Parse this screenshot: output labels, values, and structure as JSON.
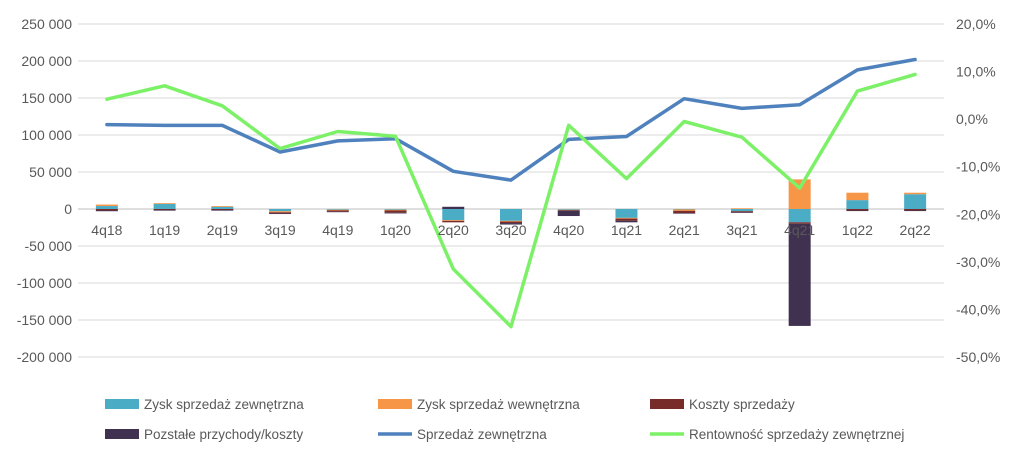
{
  "chart_data": {
    "type": "bar",
    "categories": [
      "4q18",
      "1q19",
      "2q19",
      "3q19",
      "4q19",
      "1q20",
      "2q20",
      "3q20",
      "4q20",
      "1q21",
      "2q21",
      "3q21",
      "4q21",
      "1q22",
      "2q22"
    ],
    "y_left": {
      "ylim": [
        -200000,
        250000
      ],
      "ticks": [
        250000,
        200000,
        150000,
        100000,
        50000,
        0,
        -50000,
        -100000,
        -150000,
        -200000
      ],
      "tick_labels": [
        "250 000",
        "200 000",
        "150 000",
        "100 000",
        "50 000",
        "0",
        "-50 000",
        "-100 000",
        "-150 000",
        "-200 000"
      ]
    },
    "y_right": {
      "ylim": [
        -0.5,
        0.2
      ],
      "ticks": [
        0.2,
        0.1,
        0.0,
        -0.1,
        -0.2,
        -0.3,
        -0.4,
        -0.5
      ],
      "tick_labels": [
        "20,0%",
        "10,0%",
        "0,0%",
        "-10,0%",
        "-20,0%",
        "-30,0%",
        "-40,0%",
        "-50,0%"
      ]
    },
    "grid": true,
    "legend_position": "bottom",
    "bar_series": [
      {
        "name": "Zysk sprzedaż zewnętrzna",
        "color": "#4BACC6",
        "values": [
          4000,
          7000,
          3000,
          -3000,
          -1000,
          -1000,
          -15000,
          -16000,
          -1000,
          -12000,
          -500,
          -3000,
          -18000,
          12000,
          20000
        ]
      },
      {
        "name": "Zysk sprzedaż wewnętrzna",
        "color": "#F79646",
        "values": [
          2000,
          1000,
          1000,
          -1500,
          -1000,
          -1000,
          -1000,
          -1000,
          -500,
          -1000,
          -2000,
          1000,
          40000,
          10000,
          2000
        ]
      },
      {
        "name": "Koszty sprzedaży",
        "color": "#772C2A",
        "values": [
          -2000,
          -1500,
          -1500,
          -1500,
          -1500,
          -3000,
          -2000,
          -2000,
          -1000,
          -3000,
          -3000,
          -1500,
          -2000,
          -2000,
          -2000
        ]
      },
      {
        "name": "Pozstałe przychody/koszty",
        "color": "#403151",
        "values": [
          -1000,
          -500,
          -500,
          -500,
          -500,
          -1000,
          3000,
          -2000,
          -7000,
          -2000,
          -500,
          -500,
          -138000,
          -500,
          -500
        ]
      }
    ],
    "line_series": [
      {
        "name": "Sprzedaż zewnętrzna",
        "color": "#4F81BD",
        "axis": "left",
        "values": [
          114000,
          113000,
          113000,
          77000,
          92000,
          95000,
          51000,
          39000,
          94000,
          98000,
          149000,
          136000,
          141000,
          188000,
          202000
        ]
      },
      {
        "name": "Rentowność sprzedaży zewnętrznej",
        "color": "#7CF167",
        "axis": "right",
        "values": [
          0.042,
          0.07,
          0.028,
          -0.062,
          -0.026,
          -0.036,
          -0.315,
          -0.436,
          -0.013,
          -0.125,
          -0.005,
          -0.038,
          -0.145,
          0.059,
          0.094
        ]
      }
    ]
  }
}
